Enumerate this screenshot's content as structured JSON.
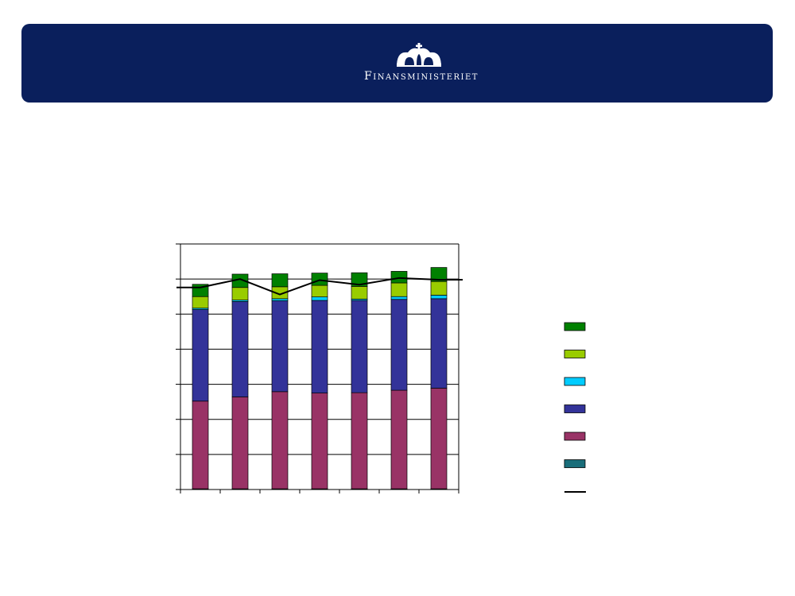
{
  "header": {
    "logo_text": "Finansministeriet",
    "colors": {
      "banner": "#0a1f5c",
      "text": "#ffffff"
    }
  },
  "chart_data": {
    "type": "bar",
    "stacked": true,
    "categories": [
      "",
      "",
      "",
      "",
      "",
      "",
      ""
    ],
    "ylim": [
      0,
      7
    ],
    "grid": true,
    "legend": "right",
    "series": [
      {
        "color": "#1a6e7a",
        "values": [
          0.02,
          0.02,
          0.02,
          0.02,
          0.02,
          0.02,
          0.02
        ]
      },
      {
        "color": "#993366",
        "values": [
          2.5,
          2.62,
          2.77,
          2.73,
          2.74,
          2.81,
          2.87
        ]
      },
      {
        "color": "#333399",
        "values": [
          2.61,
          2.72,
          2.59,
          2.64,
          2.63,
          2.59,
          2.55
        ]
      },
      {
        "color": "#00ccff",
        "values": [
          0.04,
          0.04,
          0.06,
          0.1,
          0.04,
          0.08,
          0.1
        ]
      },
      {
        "color": "#99cc00",
        "values": [
          0.33,
          0.36,
          0.34,
          0.33,
          0.36,
          0.39,
          0.39
        ]
      },
      {
        "color": "#008000",
        "values": [
          0.35,
          0.38,
          0.37,
          0.35,
          0.39,
          0.33,
          0.4
        ]
      }
    ],
    "line": {
      "color": "#000000",
      "values": [
        5.76,
        6.0,
        5.56,
        5.97,
        5.84,
        6.03,
        5.98
      ]
    }
  }
}
